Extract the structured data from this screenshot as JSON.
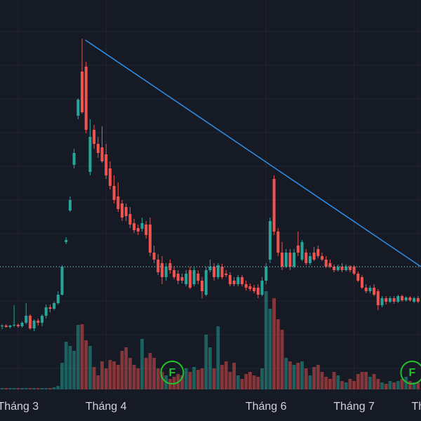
{
  "chart_data": {
    "type": "candlestick",
    "categories": [
      null,
      null,
      null,
      null,
      "Tháng 3",
      null,
      null,
      null,
      null,
      null,
      null,
      null,
      null,
      null,
      null,
      null,
      null,
      null,
      null,
      null,
      null,
      null,
      null,
      null,
      null,
      null,
      "Tháng 4",
      null,
      null,
      null,
      null,
      null,
      null,
      null,
      null,
      null,
      null,
      null,
      null,
      null,
      null,
      null,
      null,
      null,
      null,
      null,
      null,
      null,
      null,
      null,
      null,
      null,
      null,
      null,
      null,
      null,
      null,
      null,
      null,
      null,
      null,
      null,
      null,
      null,
      null,
      null,
      "Tháng 6",
      null,
      null,
      null,
      null,
      null,
      null,
      null,
      null,
      null,
      null,
      null,
      null,
      null,
      null,
      null,
      null,
      null,
      null,
      null,
      null,
      null,
      "Tháng 7",
      null,
      null,
      null,
      null,
      null,
      null,
      null,
      null,
      null,
      null,
      null,
      null,
      null,
      null,
      null,
      "Th"
    ],
    "open": [
      9.5,
      9.6,
      9.4,
      9.6,
      9.7,
      9.5,
      10.0,
      11.0,
      9.2,
      10.3,
      10.0,
      11.0,
      12.2,
      12.0,
      12.8,
      14.0,
      21.5,
      26.0,
      32.5,
      39.5,
      45.8,
      46.5,
      31.5,
      37.5,
      35.5,
      35.0,
      34.0,
      32.0,
      29.5,
      28.0,
      27.0,
      26.5,
      25.5,
      24.2,
      23.5,
      23.4,
      24.0,
      24.0,
      20.0,
      19.0,
      18.5,
      16.5,
      18.5,
      17.5,
      17.0,
      16.5,
      15.5,
      17.5,
      15.5,
      17.0,
      16.0,
      14.0,
      17.5,
      18.0,
      16.5,
      18.0,
      17.0,
      16.8,
      16.0,
      15.5,
      16.5,
      15.5,
      15.2,
      15.0,
      15.0,
      14.0,
      16.0,
      19.0,
      30.5,
      23.0,
      20.0,
      18.0,
      20.0,
      18.0,
      21.0,
      19.0,
      20.0,
      18.5,
      20.0,
      20.5,
      19.5,
      19.0,
      18.5,
      18.0,
      17.5,
      18.0,
      17.5,
      18.0,
      18.0,
      17.0,
      16.5,
      15.0,
      14.5,
      15.0,
      14.5,
      12.5,
      13.5,
      13.0,
      13.5,
      13.0,
      13.8,
      13.2,
      13.6,
      13.0,
      13.5
    ],
    "high": [
      9.8,
      9.8,
      9.7,
      12.5,
      9.9,
      10.2,
      12.8,
      11.2,
      10.5,
      10.6,
      11.2,
      12.6,
      12.6,
      13.0,
      14.5,
      18.2,
      22.2,
      28.0,
      34.8,
      42.0,
      50.5,
      47.2,
      39.0,
      38.2,
      36.5,
      38.0,
      35.5,
      33.0,
      31.0,
      30.0,
      27.5,
      27.0,
      26.5,
      24.8,
      24.0,
      25.0,
      24.5,
      25.0,
      21.0,
      19.8,
      19.5,
      18.5,
      19.0,
      18.0,
      17.5,
      17.0,
      17.5,
      18.0,
      18.0,
      17.5,
      16.5,
      18.0,
      19.0,
      18.5,
      18.5,
      18.4,
      17.5,
      17.2,
      16.5,
      16.8,
      16.8,
      16.0,
      15.6,
      15.4,
      15.5,
      16.5,
      18.5,
      25.0,
      31.0,
      23.5,
      21.5,
      20.5,
      20.5,
      20.5,
      23.0,
      21.8,
      20.5,
      20.0,
      20.8,
      21.0,
      20.0,
      19.5,
      19.0,
      18.3,
      18.3,
      18.5,
      18.3,
      18.2,
      18.2,
      17.3,
      16.8,
      15.5,
      15.3,
      15.5,
      14.8,
      13.8,
      13.8,
      13.8,
      13.8,
      14.0,
      14.0,
      13.8,
      13.8,
      13.7,
      13.8
    ],
    "low": [
      9.1,
      9.3,
      9.2,
      9.4,
      9.3,
      9.3,
      9.8,
      9.0,
      8.8,
      9.6,
      9.5,
      10.6,
      11.5,
      11.8,
      12.6,
      13.9,
      21.2,
      25.8,
      32.0,
      39.0,
      39.8,
      37.0,
      31.0,
      34.8,
      33.5,
      32.8,
      30.5,
      29.0,
      27.0,
      25.8,
      24.5,
      24.5,
      23.5,
      22.8,
      22.5,
      23.0,
      22.0,
      19.5,
      18.5,
      16.8,
      15.5,
      16.0,
      17.0,
      16.2,
      15.5,
      15.6,
      15.2,
      14.8,
      15.2,
      15.5,
      13.5,
      13.8,
      17.2,
      16.0,
      16.2,
      16.2,
      16.5,
      15.2,
      15.2,
      15.2,
      15.2,
      14.6,
      14.5,
      14.2,
      13.5,
      13.8,
      15.5,
      18.5,
      22.5,
      19.5,
      17.5,
      17.8,
      17.5,
      17.8,
      19.5,
      18.8,
      18.2,
      18.2,
      18.8,
      19.2,
      18.8,
      17.8,
      17.8,
      17.2,
      17.3,
      17.2,
      17.3,
      17.2,
      16.8,
      15.8,
      14.8,
      14.2,
      14.2,
      13.8,
      11.8,
      12.2,
      12.6,
      12.8,
      12.7,
      12.8,
      13.0,
      13.0,
      13.0,
      12.8,
      12.8
    ],
    "close": [
      9.6,
      9.4,
      9.6,
      9.7,
      9.5,
      10.0,
      11.0,
      9.2,
      10.3,
      10.0,
      11.0,
      12.2,
      12.0,
      12.8,
      14.0,
      18.0,
      21.8,
      27.5,
      34.2,
      41.8,
      40.0,
      37.5,
      36.5,
      35.5,
      34.2,
      33.0,
      31.0,
      29.5,
      27.5,
      26.2,
      25.0,
      25.2,
      24.0,
      23.2,
      23.0,
      24.2,
      22.5,
      20.0,
      19.0,
      17.2,
      16.5,
      18.0,
      17.5,
      16.5,
      16.0,
      16.0,
      17.0,
      15.0,
      17.5,
      16.0,
      14.5,
      17.5,
      18.0,
      16.5,
      18.2,
      16.5,
      16.8,
      15.5,
      15.5,
      16.5,
      15.5,
      15.0,
      14.8,
      14.5,
      14.0,
      16.0,
      18.0,
      24.5,
      23.0,
      20.0,
      18.0,
      20.0,
      18.0,
      20.0,
      20.0,
      21.5,
      18.5,
      19.5,
      19.0,
      19.5,
      19.0,
      18.0,
      18.0,
      17.5,
      18.0,
      17.5,
      18.0,
      17.5,
      17.0,
      16.0,
      15.0,
      14.5,
      15.0,
      14.0,
      12.5,
      13.5,
      13.0,
      13.5,
      13.0,
      13.8,
      13.2,
      13.6,
      13.2,
      13.5,
      13.0
    ],
    "volume": [
      2,
      2,
      2,
      2,
      2,
      2,
      2,
      2,
      2,
      2,
      2,
      2,
      2,
      3,
      5,
      38,
      68,
      62,
      55,
      92,
      93,
      70,
      62,
      32,
      20,
      40,
      30,
      42,
      40,
      35,
      55,
      60,
      45,
      35,
      30,
      72,
      45,
      52,
      45,
      30,
      25,
      20,
      15,
      18,
      22,
      20,
      30,
      25,
      32,
      28,
      30,
      78,
      60,
      30,
      90,
      35,
      40,
      25,
      38,
      20,
      15,
      22,
      25,
      20,
      18,
      30,
      140,
      115,
      130,
      100,
      85,
      45,
      40,
      35,
      38,
      40,
      30,
      20,
      32,
      35,
      25,
      18,
      15,
      25,
      20,
      12,
      10,
      15,
      12,
      22,
      25,
      25,
      18,
      22,
      15,
      10,
      8,
      12,
      10,
      12,
      15,
      18,
      12,
      10,
      10
    ],
    "ylim": [
      0,
      56
    ],
    "vlim": [
      0,
      150
    ],
    "up_color": "#26a69a",
    "down_color": "#ef5350",
    "trend_color": "#2f8fe8",
    "trendline": {
      "x": [
        20.8,
        104.7
      ],
      "y": [
        50.3,
        18
      ]
    },
    "price_line": 18,
    "events": [
      {
        "index": 42,
        "label": "F"
      },
      {
        "index": 102,
        "label": "F"
      }
    ],
    "grid": true
  }
}
